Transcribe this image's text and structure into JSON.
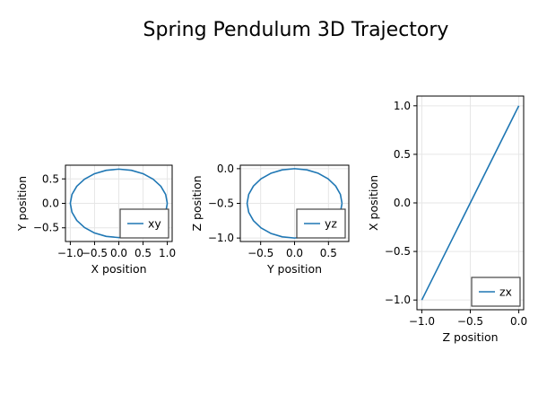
{
  "figure": {
    "title": "Spring Pendulum 3D Trajectory"
  },
  "colors": {
    "series": "#1f77b4",
    "frame": "#000000",
    "grid": "#e6e6e6",
    "legend_border": "#444444",
    "text": "#000000"
  },
  "chart_data": [
    {
      "type": "line",
      "xlabel": "X position",
      "ylabel": "Y position",
      "xlim": [
        -1.1,
        1.1
      ],
      "ylim": [
        -0.78,
        0.78
      ],
      "xticks": [
        -1.0,
        -0.5,
        0.0,
        0.5,
        1.0
      ],
      "xtick_labels": [
        "−1.0",
        "−0.5",
        "0.0",
        "0.5",
        "1.0"
      ],
      "yticks": [
        -0.5,
        0.0,
        0.5
      ],
      "ytick_labels": [
        "−0.5",
        "0.0",
        "0.5"
      ],
      "grid": true,
      "legend": {
        "position": "bottom-right",
        "entries": [
          "xy"
        ]
      },
      "series": [
        {
          "name": "xy",
          "x": [
            1.0,
            0.966,
            0.866,
            0.707,
            0.5,
            0.259,
            0.0,
            -0.259,
            -0.5,
            -0.707,
            -0.866,
            -0.966,
            -1.0,
            -0.966,
            -0.866,
            -0.707,
            -0.5,
            -0.259,
            0.0,
            0.259,
            0.5,
            0.707,
            0.866,
            0.966,
            1.0
          ],
          "y": [
            0.0,
            0.181,
            0.35,
            0.495,
            0.606,
            0.676,
            0.7,
            0.676,
            0.606,
            0.495,
            0.35,
            0.181,
            0.0,
            -0.181,
            -0.35,
            -0.495,
            -0.606,
            -0.676,
            -0.7,
            -0.676,
            -0.606,
            -0.495,
            -0.35,
            -0.181,
            0.0
          ]
        }
      ]
    },
    {
      "type": "line",
      "xlabel": "Y position",
      "ylabel": "Z position",
      "xlim": [
        -0.8,
        0.8
      ],
      "ylim": [
        -1.05,
        0.05
      ],
      "xticks": [
        -0.5,
        0.0,
        0.5
      ],
      "xtick_labels": [
        "−0.5",
        "0.0",
        "0.5"
      ],
      "yticks": [
        -1.0,
        -0.5,
        0.0
      ],
      "ytick_labels": [
        "−1.0",
        "−0.5",
        "0.0"
      ],
      "grid": true,
      "legend": {
        "position": "bottom-right",
        "entries": [
          "yz"
        ]
      },
      "series": [
        {
          "name": "yz",
          "x": [
            0.7,
            0.676,
            0.606,
            0.495,
            0.35,
            0.181,
            0.0,
            -0.181,
            -0.35,
            -0.495,
            -0.606,
            -0.676,
            -0.7,
            -0.676,
            -0.606,
            -0.495,
            -0.35,
            -0.181,
            0.0,
            0.181,
            0.35,
            0.495,
            0.606,
            0.676,
            0.7
          ],
          "y": [
            -0.5,
            -0.371,
            -0.25,
            -0.146,
            -0.067,
            -0.017,
            0.0,
            -0.017,
            -0.067,
            -0.146,
            -0.25,
            -0.371,
            -0.5,
            -0.629,
            -0.75,
            -0.854,
            -0.933,
            -0.983,
            -1.0,
            -0.983,
            -0.933,
            -0.854,
            -0.75,
            -0.629,
            -0.5
          ]
        }
      ]
    },
    {
      "type": "line",
      "xlabel": "Z position",
      "ylabel": "X position",
      "xlim": [
        -1.05,
        0.05
      ],
      "ylim": [
        -1.1,
        1.1
      ],
      "xticks": [
        -1.0,
        -0.5,
        0.0
      ],
      "xtick_labels": [
        "−1.0",
        "−0.5",
        "0.0"
      ],
      "yticks": [
        -1.0,
        -0.5,
        0.0,
        0.5,
        1.0
      ],
      "ytick_labels": [
        "−1.0",
        "−0.5",
        "0.0",
        "0.5",
        "1.0"
      ],
      "grid": true,
      "legend": {
        "position": "bottom-right",
        "entries": [
          "zx"
        ]
      },
      "series": [
        {
          "name": "zx",
          "x": [
            -1.0,
            0.0
          ],
          "y": [
            -1.0,
            1.0
          ]
        }
      ]
    }
  ]
}
